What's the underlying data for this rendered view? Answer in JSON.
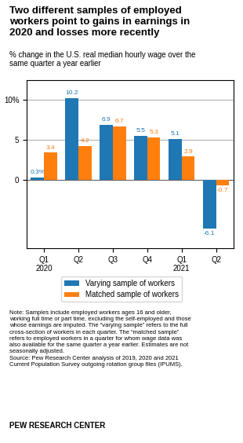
{
  "chart_data": {
    "type": "bar",
    "title": "Two different samples of employed\nworkers point to gains in earnings in\n2020 and losses more recently",
    "subtitle": "% change in the U.S. real median hourly wage over the\nsame quarter a year earlier",
    "categories": [
      "Q1\n2020",
      "Q2",
      "Q3",
      "Q4",
      "Q1\n2021",
      "Q2"
    ],
    "series": [
      {
        "name": "Varying sample of workers",
        "values": [
          0.3,
          10.2,
          6.9,
          5.5,
          5.1,
          -6.1
        ],
        "value_labels": [
          "0.3%",
          "10.2",
          "6.9",
          "5.5",
          "5.1",
          "-6.1"
        ]
      },
      {
        "name": "Matched sample of workers",
        "values": [
          3.4,
          4.2,
          6.7,
          5.3,
          2.9,
          -0.7
        ]
      }
    ],
    "ylim": [
      -8.5,
      12.5
    ],
    "yticks": [
      0,
      5,
      {
        "value": 10,
        "label": "10%"
      }
    ],
    "grid": true,
    "legend": "upper center",
    "data_labels": true,
    "annotations": [
      "Note: Samples include employed workers ages 16 and older,\nworking full time or part time, excluding the self-employed and those\nwhose earnings are imputed. The “varying sample” refers to the full\ncross-section of workers in each quarter. The “matched sample”\nrefers to employed workers in a quarter for whom wage data was\nalso available for the same quarter a year earlier. Estimates are not\nseasonally adjusted.\nSource: Pew Research Center analysis of 2019, 2020 and 2021\nCurrent Population Survey outgoing rotation group files (IPUMS).",
      "PEW RESEARCH CENTER"
    ]
  }
}
